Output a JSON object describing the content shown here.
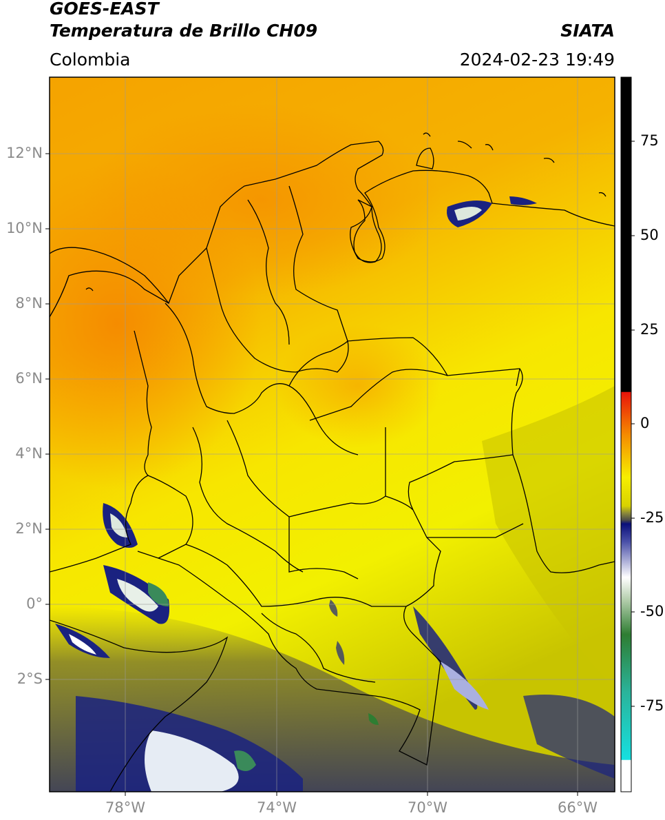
{
  "header": {
    "satellite": "GOES-EAST",
    "product": "Temperatura de Brillo CH09",
    "organization": "SIATA",
    "region": "Colombia",
    "datetime": "2024-02-23 19:49"
  },
  "map": {
    "latitude_ticks": [
      "12°N",
      "10°N",
      "8°N",
      "6°N",
      "4°N",
      "2°N",
      "0°",
      "2°S"
    ],
    "longitude_ticks": [
      "78°W",
      "74°W",
      "70°W",
      "66°W"
    ],
    "extent": {
      "lon_min": -80,
      "lon_max": -65,
      "lat_min": -5,
      "lat_max": 14
    }
  },
  "colorbar": {
    "tick_labels": [
      "75",
      "50",
      "25",
      "0",
      "-25",
      "-50",
      "-75"
    ],
    "colors": {
      "warm_black": "#000000",
      "red": "#e8140a",
      "orange": "#f58a00",
      "yellow": "#f7ef00",
      "olive": "#6e6a34",
      "navy": "#0a0f7a",
      "white": "#ffffff",
      "green": "#2e7d32",
      "teal": "#2ab39a",
      "cyan": "#16e0e0"
    }
  }
}
